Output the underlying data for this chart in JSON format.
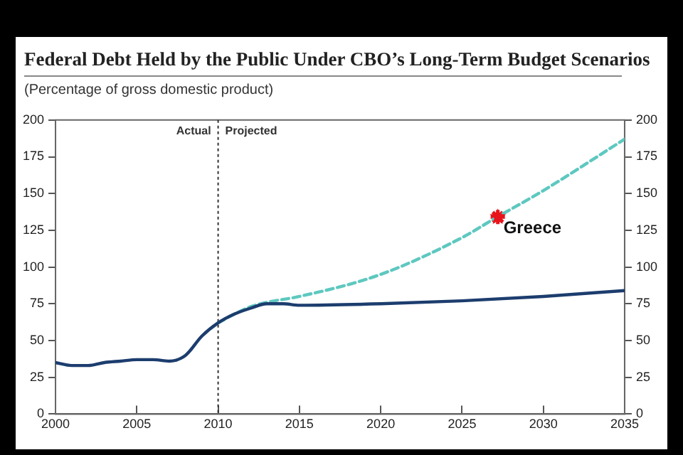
{
  "chart_data": {
    "type": "line",
    "title": "Federal Debt Held by the Public Under CBO’s Long-Term Budget Scenarios",
    "subtitle": "(Percentage of gross domestic product)",
    "xlim": [
      2000,
      2035
    ],
    "xticks": [
      2000,
      2005,
      2010,
      2015,
      2020,
      2025,
      2030,
      2035
    ],
    "ylim": [
      0,
      200
    ],
    "yticks": [
      0,
      25,
      50,
      75,
      100,
      125,
      150,
      175,
      200
    ],
    "y2lim": [
      0,
      200
    ],
    "y2ticks": [
      0,
      25,
      50,
      75,
      100,
      125,
      150,
      175,
      200
    ],
    "grid": false,
    "legend": false,
    "series": [
      {
        "color": "#1c3d6e",
        "line_style": "solid",
        "marker": "none",
        "x": [
          2000,
          2001,
          2002,
          2003,
          2004,
          2005,
          2006,
          2007,
          2008,
          2009,
          2010,
          2011,
          2012,
          2013,
          2014,
          2015,
          2020,
          2025,
          2030,
          2035
        ],
        "values": [
          35,
          33,
          33,
          35,
          36,
          37,
          37,
          36,
          40,
          53,
          62,
          68,
          72,
          75,
          75,
          74,
          75,
          77,
          80,
          84
        ]
      },
      {
        "color": "#5ec8c0",
        "line_style": "dashed",
        "marker": "none",
        "x": [
          2010,
          2011,
          2012,
          2013,
          2015,
          2020,
          2025,
          2027,
          2030,
          2035
        ],
        "values": [
          62,
          68,
          73,
          76,
          80,
          95,
          120,
          133,
          152,
          187
        ]
      },
      {
        "type": "scatter",
        "name": "Greece",
        "color": "#e8141b",
        "marker": "star",
        "x": [
          2027.2
        ],
        "values": [
          134
        ]
      }
    ],
    "ref_lines": [
      {
        "axis": "x",
        "value": 2010,
        "color": "#333333",
        "line_style": "dotted"
      }
    ],
    "annotations": [
      "Actual",
      "Projected"
    ]
  }
}
